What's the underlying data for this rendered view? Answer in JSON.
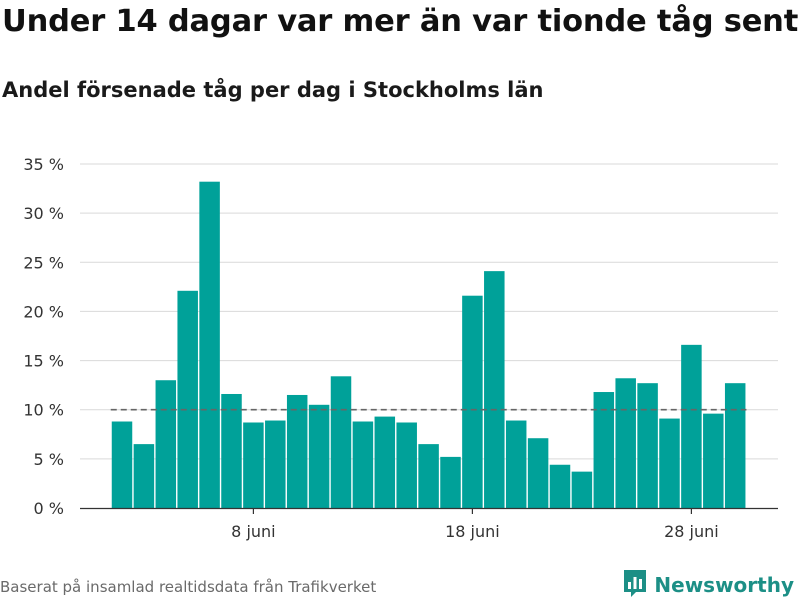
{
  "title": "Under 14 dagar var mer än var tionde tåg sent",
  "subtitle": "Andel försenade tåg per dag i Stockholms län",
  "source": "Baserat på insamlad realtidsdata från Trafikverket",
  "brand": {
    "name": "Newsworthy",
    "icon": "newsworthy-logo-icon"
  },
  "colors": {
    "bar": "#00a199",
    "reference_line": "#666666",
    "grid": "#d9d9d9",
    "brand": "#1c8f86"
  },
  "chart_data": {
    "type": "bar",
    "ylabel": "",
    "xlabel": "",
    "ylim": [
      0,
      35
    ],
    "yticks": [
      {
        "value": 0,
        "label": "0 %"
      },
      {
        "value": 5,
        "label": "5 %"
      },
      {
        "value": 10,
        "label": "10 %"
      },
      {
        "value": 15,
        "label": "15 %"
      },
      {
        "value": 20,
        "label": "20 %"
      },
      {
        "value": 25,
        "label": "25 %"
      },
      {
        "value": 30,
        "label": "30 %"
      },
      {
        "value": 35,
        "label": "35 %"
      }
    ],
    "xticks": [
      {
        "index": 6,
        "label": "8 juni"
      },
      {
        "index": 16,
        "label": "18 juni"
      },
      {
        "index": 26,
        "label": "28 juni"
      }
    ],
    "reference_line": 10,
    "values": [
      8.8,
      6.5,
      13.0,
      22.1,
      33.2,
      11.6,
      8.7,
      8.9,
      11.5,
      10.5,
      13.4,
      8.8,
      9.3,
      8.7,
      6.5,
      5.2,
      21.6,
      24.1,
      8.9,
      7.1,
      4.4,
      3.7,
      11.8,
      13.2,
      12.7,
      9.1,
      16.6,
      9.6,
      12.7
    ],
    "grid": true,
    "legend": "none"
  }
}
